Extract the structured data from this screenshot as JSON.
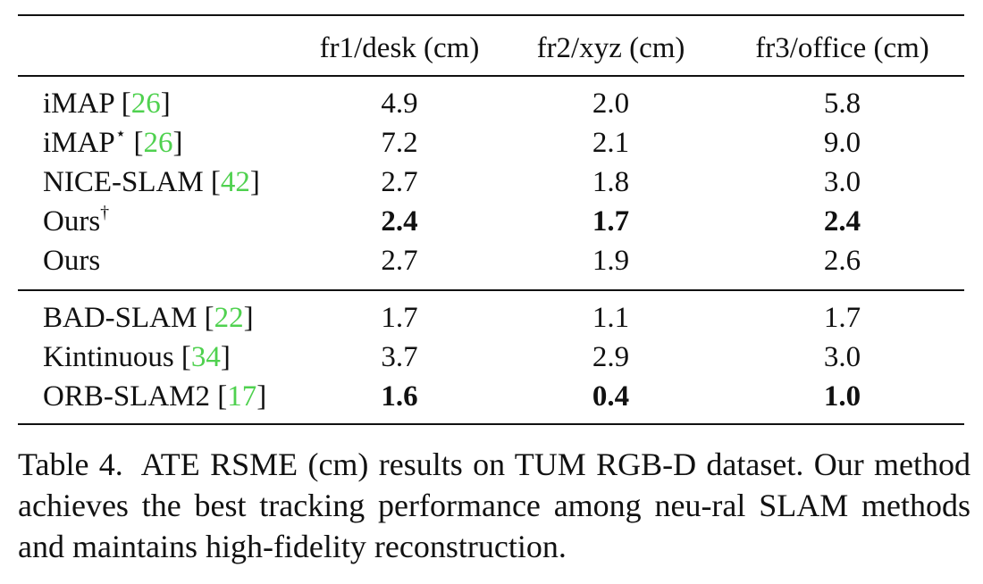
{
  "table": {
    "headers": [
      "",
      "fr1/desk (cm)",
      "fr2/xyz (cm)",
      "fr3/office (cm)"
    ],
    "groups": [
      [
        {
          "method": "iMAP [",
          "cite": "26",
          "close": "]",
          "sup": "",
          "values": [
            "4.9",
            "2.0",
            "5.8"
          ],
          "bold": [
            false,
            false,
            false
          ]
        },
        {
          "method": "iMAP",
          "cite": "26",
          "close": "]",
          "sup": "⋆",
          "values": [
            "7.2",
            "2.1",
            "9.0"
          ],
          "bold": [
            false,
            false,
            false
          ]
        },
        {
          "method": "NICE-SLAM [",
          "cite": "42",
          "close": "]",
          "sup": "",
          "values": [
            "2.7",
            "1.8",
            "3.0"
          ],
          "bold": [
            false,
            false,
            false
          ]
        },
        {
          "method": "Ours",
          "cite": "",
          "close": "",
          "sup": "†",
          "values": [
            "2.4",
            "1.7",
            "2.4"
          ],
          "bold": [
            true,
            true,
            true
          ]
        },
        {
          "method": "Ours",
          "cite": "",
          "close": "",
          "sup": "",
          "values": [
            "2.7",
            "1.9",
            "2.6"
          ],
          "bold": [
            false,
            false,
            false
          ]
        }
      ],
      [
        {
          "method": "BAD-SLAM [",
          "cite": "22",
          "close": "]",
          "sup": "",
          "values": [
            "1.7",
            "1.1",
            "1.7"
          ],
          "bold": [
            false,
            false,
            false
          ]
        },
        {
          "method": "Kintinuous [",
          "cite": "34",
          "close": "]",
          "sup": "",
          "values": [
            "3.7",
            "2.9",
            "3.0"
          ],
          "bold": [
            false,
            false,
            false
          ]
        },
        {
          "method": "ORB-SLAM2 [",
          "cite": "17",
          "close": "]",
          "sup": "",
          "values": [
            "1.6",
            "0.4",
            "1.0"
          ],
          "bold": [
            true,
            true,
            true
          ]
        }
      ]
    ]
  },
  "caption": {
    "label": "Table 4.",
    "text": "ATE RSME (cm) results on TUM RGB-D dataset. Our method achieves the best tracking performance among neu-ral SLAM methods and maintains high-fidelity reconstruction."
  },
  "colors": {
    "citation": "#4fd14f",
    "text": "#111111"
  }
}
